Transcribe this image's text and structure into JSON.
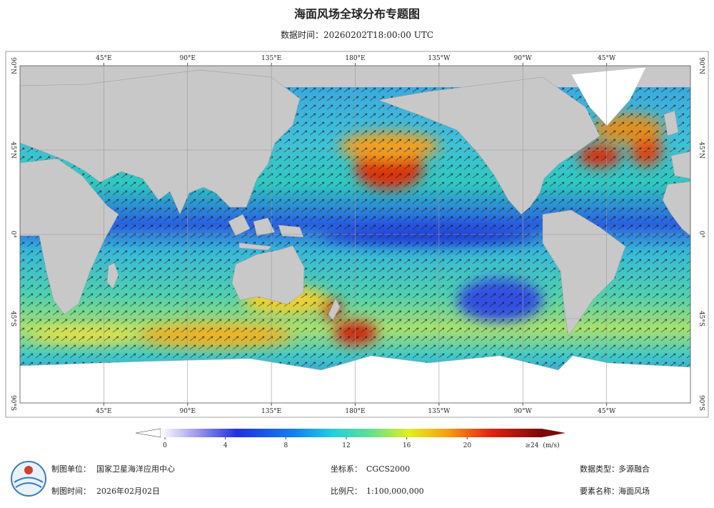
{
  "header": {
    "title": "海面风场全球分布专题图",
    "subtitle": "数据时间：20260202T18:00:00 UTC"
  },
  "map": {
    "lon_labels": [
      "45°E",
      "90°E",
      "135°E",
      "180°E",
      "135°W",
      "90°W",
      "45°W"
    ],
    "lat_labels": [
      "90°N",
      "45°N",
      "0°",
      "45°S",
      "90°S"
    ]
  },
  "colorbar": {
    "range": [
      0,
      24
    ],
    "ticks": [
      0,
      4,
      8,
      12,
      16,
      20
    ],
    "max_label": "≥24",
    "unit": "(m/s)"
  },
  "footer": [
    {
      "label": "制图单位：",
      "value": "国家卫星海洋应用中心"
    },
    {
      "label": "坐标系：",
      "value": "CGCS2000"
    },
    {
      "label": "数据类型：",
      "value": "多源融合"
    },
    {
      "label": "制图时间：",
      "value": "2026年02月02日"
    },
    {
      "label": "比例尺：",
      "value": "1:100,000,000"
    },
    {
      "label": "要素名称：",
      "value": "海面风场"
    }
  ]
}
